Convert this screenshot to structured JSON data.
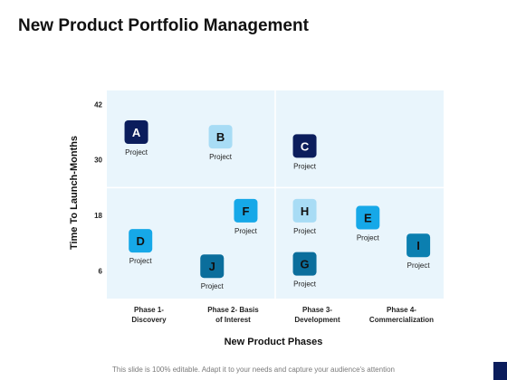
{
  "page": {
    "title": "New Product Portfolio Management",
    "footer": "This slide is 100% editable. Adapt it to your needs and capture your audience's attention"
  },
  "chart_data": {
    "type": "scatter",
    "xlabel": "New Product Phases",
    "ylabel": "Time To Launch-Months",
    "categories": [
      "Phase 1-\nDiscovery",
      "Phase 2- Basis\nof Interest",
      "Phase 3-\nDevelopment",
      "Phase 4-\nCommercialization"
    ],
    "yticks": [
      6,
      18,
      30,
      42
    ],
    "ylim": [
      0,
      45
    ],
    "xlim": [
      0,
      4
    ],
    "quadrant_split": {
      "x": 2,
      "y": 24
    },
    "grid": false,
    "points": [
      {
        "letter": "A",
        "caption": "Project",
        "x": 0.35,
        "y": 36,
        "color": "#0b1d5c",
        "text_color": "#ffffff"
      },
      {
        "letter": "B",
        "caption": "Project",
        "x": 1.35,
        "y": 35,
        "color": "#a8dcf5",
        "text_color": "#111111"
      },
      {
        "letter": "C",
        "caption": "Project",
        "x": 2.35,
        "y": 33,
        "color": "#0b1d5c",
        "text_color": "#ffffff"
      },
      {
        "letter": "D",
        "caption": "Project",
        "x": 0.4,
        "y": 12.5,
        "color": "#16a8e8",
        "text_color": "#111111"
      },
      {
        "letter": "F",
        "caption": "Project",
        "x": 1.65,
        "y": 19,
        "color": "#16a8e8",
        "text_color": "#111111"
      },
      {
        "letter": "H",
        "caption": "Project",
        "x": 2.35,
        "y": 19,
        "color": "#a8dcf5",
        "text_color": "#111111"
      },
      {
        "letter": "E",
        "caption": "Project",
        "x": 3.1,
        "y": 17.5,
        "color": "#16a8e8",
        "text_color": "#111111"
      },
      {
        "letter": "I",
        "caption": "Project",
        "x": 3.7,
        "y": 11.5,
        "color": "#0b7fb0",
        "text_color": "#111111"
      },
      {
        "letter": "J",
        "caption": "Project",
        "x": 1.25,
        "y": 7,
        "color": "#0b6e9c",
        "text_color": "#111111"
      },
      {
        "letter": "G",
        "caption": "Project",
        "x": 2.35,
        "y": 7.5,
        "color": "#0b6e9c",
        "text_color": "#111111"
      }
    ],
    "colors": {
      "plot_bg": "#e9f5fc",
      "divider": "#ffffff"
    }
  }
}
